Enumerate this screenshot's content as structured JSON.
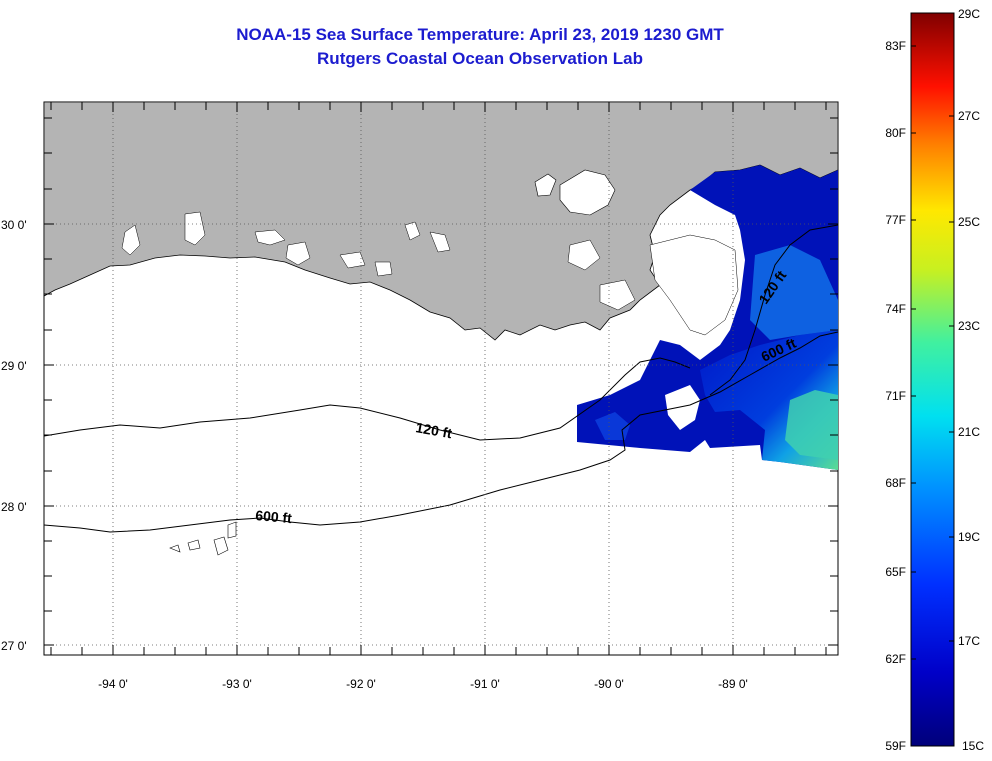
{
  "title": {
    "line1": "NOAA-15 Sea Surface Temperature:  April 23, 2019 1230 GMT",
    "line2": "Rutgers Coastal Ocean Observation Lab"
  },
  "colors": {
    "title": "#1c1ccf",
    "land": "#b4b4b4",
    "ocean_nodata": "#ffffff"
  },
  "axes": {
    "lon_labels": [
      "-94 0'",
      "-93 0'",
      "-92 0'",
      "-91 0'",
      "-90 0'",
      "-89 0'"
    ],
    "lat_labels": [
      "30 0'",
      "29 0'",
      "28 0'",
      "27 0'"
    ]
  },
  "contours": {
    "label_120": "120 ft",
    "label_600": "600 ft"
  },
  "colorbar": {
    "fahrenheit": [
      "83F",
      "80F",
      "77F",
      "74F",
      "71F",
      "68F",
      "65F",
      "62F",
      "59F"
    ],
    "celsius": [
      "29C",
      "27C",
      "25C",
      "23C",
      "21C",
      "19C",
      "17C",
      "15C"
    ]
  }
}
